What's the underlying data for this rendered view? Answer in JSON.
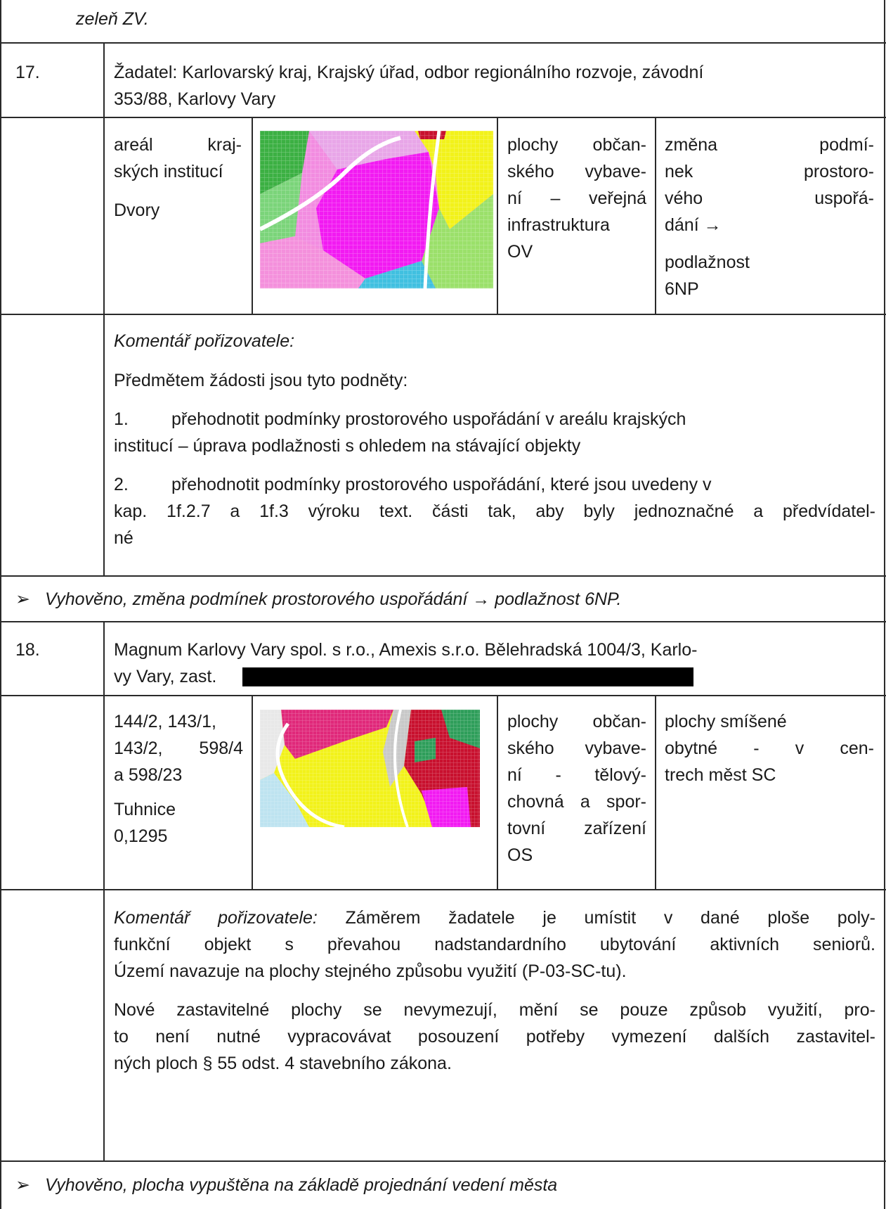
{
  "top_remnant": "zeleň ZV.",
  "entry17": {
    "number": "17.",
    "applicant_line1": "Žadatel: Karlovarský kraj, Krajský úřad, odbor regionálního rozvoje, závodní",
    "applicant_line2": "353/88, Karlovy Vary",
    "area_line1": "areál kraj-",
    "area_line2": "ských institucí",
    "area_line3": "Dvory",
    "current_use_lines": [
      "plochy občan-",
      "ského vybave-",
      "ní – veřejná",
      "infrastruktura",
      "OV"
    ],
    "requested_change_lines": [
      "změna podmí-",
      "nek prostoro-",
      "vého uspořá-",
      "dání →"
    ],
    "requested_change_extra": [
      "podlažnost",
      "6NP"
    ],
    "comment_label": "Komentář pořizovatele:",
    "comment_intro": "Předmětem žádosti jsou tyto podněty:",
    "item1_num": "1.",
    "item1_line1": "přehodnotit podmínky prostorového uspořádání v areálu krajských",
    "item1_line2": "institucí – úprava podlažnosti s ohledem na stávající objekty",
    "item2_num": "2.",
    "item2_line1": "přehodnotit podmínky prostorového uspořádání, které jsou uvedeny v",
    "item2_line2": "kap. 1f.2.7 a 1f.3 výroku text. části tak, aby byly jednoznačné a předvídatel-",
    "item2_line3": "né",
    "bullet": "➢",
    "decision": "Vyhověno, změna podmínek prostorového uspořádání → podlažnost 6NP."
  },
  "entry18": {
    "number": "18.",
    "applicant_line1": "Magnum Karlovy Vary spol. s r.o., Amexis s.r.o. Bělehradská 1004/3, Karlo-",
    "applicant_line2": "vy Vary, zast.",
    "parcels_lines": [
      "144/2, 143/1,",
      "143/2, 598/4",
      "a 598/23"
    ],
    "locality": "Tuhnice",
    "area": "0,1295",
    "current_use_lines": [
      "plochy občan-",
      "ského vybave-",
      "ní - tělový-",
      "chovná a spor-",
      "tovní zařízení",
      "OS"
    ],
    "requested_change_lines": [
      "plochy smíšené",
      "obytné - v cen-",
      "trech měst SC"
    ],
    "comment_label": "Komentář pořizovatele:",
    "comment_line1_rest": "Záměrem žadatele je umístit v dané ploše poly-",
    "comment_line2": "funkční objekt s převahou nadstandardního ubytování aktivních seniorů.",
    "comment_line3": "Území navazuje na plochy stejného způsobu využití (P-03-SC-tu).",
    "comment2_line1": "Nové zastavitelné plochy se nevymezují, mění se pouze způsob využití, pro-",
    "comment2_line2": "to není nutné vypracovávat posouzení potřeby vymezení dalších zastavitel-",
    "comment2_line3": "ných ploch § 55 odst. 4 stavebního zákona.",
    "bullet": "➢",
    "decision": "Vyhověno, plocha vypuštěna na základě projednání vedení města"
  },
  "colors": {
    "rule": "#2a2a2a",
    "map_magenta": "#f21af2",
    "map_yellow": "#f2f21a",
    "map_green": "#3cb043",
    "map_red": "#c8102e",
    "map_pink": "#f4a3c8"
  }
}
